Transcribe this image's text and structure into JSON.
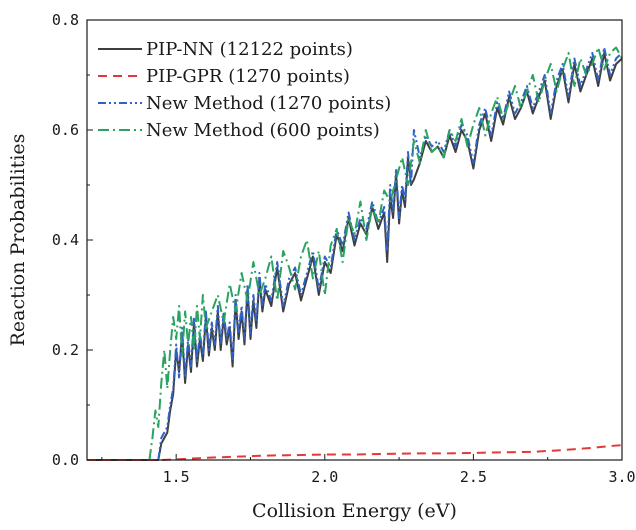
{
  "chart_data": {
    "type": "line",
    "title": "",
    "xlabel": "Collision Energy (eV)",
    "ylabel": "Reaction Probabilities",
    "xlim": [
      1.2,
      3.0
    ],
    "ylim": [
      0.0,
      0.8
    ],
    "xticks": [
      1.5,
      2.0,
      2.5,
      3.0
    ],
    "xtick_labels": [
      "1.5",
      "2.0",
      "2.5",
      "3.0"
    ],
    "yticks": [
      0.0,
      0.2,
      0.4,
      0.6,
      0.8
    ],
    "ytick_labels": [
      "0.0",
      "0.2",
      "0.4",
      "0.6",
      "0.8"
    ],
    "grid": false,
    "legend_position": "top-left",
    "series": [
      {
        "name": "PIP-NN (12122 points)",
        "color": "#3f3f3f",
        "dash": "solid",
        "x": [
          1.2,
          1.44,
          1.45,
          1.47,
          1.48,
          1.49,
          1.5,
          1.51,
          1.52,
          1.53,
          1.54,
          1.55,
          1.56,
          1.57,
          1.58,
          1.59,
          1.6,
          1.61,
          1.62,
          1.63,
          1.64,
          1.65,
          1.66,
          1.67,
          1.68,
          1.69,
          1.7,
          1.71,
          1.72,
          1.73,
          1.74,
          1.75,
          1.76,
          1.77,
          1.78,
          1.79,
          1.8,
          1.82,
          1.84,
          1.86,
          1.88,
          1.9,
          1.92,
          1.94,
          1.96,
          1.98,
          2.0,
          2.02,
          2.04,
          2.06,
          2.08,
          2.1,
          2.12,
          2.14,
          2.16,
          2.18,
          2.2,
          2.21,
          2.22,
          2.23,
          2.24,
          2.25,
          2.26,
          2.27,
          2.28,
          2.29,
          2.3,
          2.32,
          2.34,
          2.36,
          2.38,
          2.4,
          2.42,
          2.44,
          2.46,
          2.48,
          2.5,
          2.52,
          2.54,
          2.56,
          2.58,
          2.6,
          2.62,
          2.64,
          2.66,
          2.68,
          2.7,
          2.72,
          2.74,
          2.76,
          2.78,
          2.8,
          2.82,
          2.84,
          2.86,
          2.88,
          2.9,
          2.92,
          2.94,
          2.96,
          2.98,
          3.0
        ],
        "y": [
          0.0,
          0.0,
          0.03,
          0.05,
          0.09,
          0.12,
          0.2,
          0.16,
          0.23,
          0.14,
          0.21,
          0.16,
          0.25,
          0.17,
          0.22,
          0.18,
          0.26,
          0.19,
          0.24,
          0.2,
          0.27,
          0.2,
          0.26,
          0.21,
          0.24,
          0.17,
          0.29,
          0.22,
          0.27,
          0.21,
          0.31,
          0.22,
          0.29,
          0.24,
          0.33,
          0.27,
          0.31,
          0.28,
          0.35,
          0.27,
          0.32,
          0.34,
          0.29,
          0.33,
          0.37,
          0.3,
          0.36,
          0.34,
          0.41,
          0.38,
          0.44,
          0.39,
          0.43,
          0.41,
          0.46,
          0.42,
          0.45,
          0.36,
          0.48,
          0.44,
          0.52,
          0.43,
          0.49,
          0.46,
          0.55,
          0.5,
          0.51,
          0.54,
          0.58,
          0.56,
          0.57,
          0.55,
          0.59,
          0.56,
          0.6,
          0.58,
          0.53,
          0.6,
          0.63,
          0.58,
          0.64,
          0.61,
          0.66,
          0.62,
          0.64,
          0.67,
          0.63,
          0.66,
          0.69,
          0.62,
          0.68,
          0.71,
          0.65,
          0.72,
          0.67,
          0.7,
          0.73,
          0.68,
          0.74,
          0.69,
          0.72,
          0.73
        ]
      },
      {
        "name": "PIP-GPR (1270 points)",
        "color": "#e03a3a",
        "dash": "dashed",
        "x": [
          1.2,
          1.45,
          1.5,
          1.6,
          1.7,
          1.8,
          1.9,
          2.0,
          2.1,
          2.2,
          2.3,
          2.4,
          2.5,
          2.6,
          2.7,
          2.8,
          2.9,
          2.95,
          3.0
        ],
        "y": [
          0.0,
          0.0,
          0.001,
          0.004,
          0.006,
          0.008,
          0.009,
          0.01,
          0.01,
          0.011,
          0.012,
          0.012,
          0.013,
          0.014,
          0.015,
          0.018,
          0.022,
          0.025,
          0.027
        ]
      },
      {
        "name": "New Method (1270 points)",
        "color": "#2e62c9",
        "dash": "dash-dot-dot",
        "x": [
          1.44,
          1.45,
          1.47,
          1.48,
          1.49,
          1.5,
          1.51,
          1.52,
          1.53,
          1.54,
          1.55,
          1.56,
          1.57,
          1.58,
          1.59,
          1.6,
          1.61,
          1.62,
          1.63,
          1.64,
          1.65,
          1.66,
          1.67,
          1.68,
          1.69,
          1.7,
          1.71,
          1.72,
          1.73,
          1.74,
          1.75,
          1.76,
          1.77,
          1.78,
          1.79,
          1.8,
          1.82,
          1.84,
          1.86,
          1.88,
          1.9,
          1.92,
          1.94,
          1.96,
          1.98,
          2.0,
          2.02,
          2.04,
          2.06,
          2.08,
          2.1,
          2.12,
          2.14,
          2.16,
          2.18,
          2.2,
          2.21,
          2.22,
          2.23,
          2.24,
          2.25,
          2.26,
          2.27,
          2.28,
          2.29,
          2.3,
          2.32,
          2.34,
          2.36,
          2.38,
          2.4,
          2.42,
          2.44,
          2.46,
          2.48,
          2.5,
          2.52,
          2.54,
          2.56,
          2.58,
          2.6,
          2.62,
          2.64,
          2.66,
          2.68,
          2.7,
          2.72,
          2.74,
          2.76,
          2.78,
          2.8,
          2.82,
          2.84,
          2.86,
          2.88,
          2.9,
          2.92,
          2.94,
          2.96,
          2.98,
          3.0
        ],
        "y": [
          0.0,
          0.04,
          0.06,
          0.1,
          0.13,
          0.21,
          0.15,
          0.24,
          0.15,
          0.22,
          0.17,
          0.26,
          0.18,
          0.23,
          0.19,
          0.27,
          0.2,
          0.25,
          0.21,
          0.28,
          0.21,
          0.27,
          0.22,
          0.25,
          0.18,
          0.3,
          0.23,
          0.28,
          0.22,
          0.32,
          0.23,
          0.3,
          0.25,
          0.34,
          0.28,
          0.32,
          0.29,
          0.36,
          0.28,
          0.33,
          0.35,
          0.3,
          0.34,
          0.38,
          0.31,
          0.37,
          0.35,
          0.42,
          0.39,
          0.45,
          0.4,
          0.44,
          0.42,
          0.47,
          0.43,
          0.46,
          0.38,
          0.5,
          0.45,
          0.53,
          0.44,
          0.5,
          0.47,
          0.56,
          0.5,
          0.6,
          0.55,
          0.59,
          0.57,
          0.58,
          0.56,
          0.6,
          0.57,
          0.61,
          0.59,
          0.54,
          0.61,
          0.64,
          0.59,
          0.65,
          0.62,
          0.67,
          0.63,
          0.65,
          0.68,
          0.64,
          0.67,
          0.7,
          0.63,
          0.69,
          0.72,
          0.66,
          0.73,
          0.68,
          0.71,
          0.74,
          0.69,
          0.75,
          0.7,
          0.73,
          0.74
        ]
      },
      {
        "name": "New Method (600 points)",
        "color": "#2aa262",
        "dash": "dash-dot",
        "x": [
          1.41,
          1.42,
          1.43,
          1.44,
          1.45,
          1.46,
          1.47,
          1.48,
          1.49,
          1.5,
          1.51,
          1.52,
          1.53,
          1.54,
          1.55,
          1.56,
          1.57,
          1.58,
          1.59,
          1.6,
          1.62,
          1.64,
          1.66,
          1.68,
          1.7,
          1.72,
          1.74,
          1.76,
          1.78,
          1.8,
          1.82,
          1.84,
          1.86,
          1.88,
          1.9,
          1.92,
          1.94,
          1.96,
          1.98,
          2.0,
          2.02,
          2.04,
          2.06,
          2.08,
          2.1,
          2.12,
          2.14,
          2.16,
          2.18,
          2.2,
          2.22,
          2.24,
          2.26,
          2.28,
          2.3,
          2.32,
          2.34,
          2.36,
          2.38,
          2.4,
          2.42,
          2.44,
          2.46,
          2.48,
          2.5,
          2.52,
          2.54,
          2.56,
          2.58,
          2.6,
          2.62,
          2.64,
          2.66,
          2.68,
          2.7,
          2.72,
          2.74,
          2.76,
          2.78,
          2.8,
          2.82,
          2.84,
          2.86,
          2.88,
          2.9,
          2.92,
          2.94,
          2.96,
          2.98,
          3.0
        ],
        "y": [
          0.0,
          0.04,
          0.09,
          0.06,
          0.14,
          0.2,
          0.13,
          0.2,
          0.26,
          0.22,
          0.28,
          0.19,
          0.27,
          0.21,
          0.26,
          0.2,
          0.28,
          0.22,
          0.3,
          0.24,
          0.27,
          0.3,
          0.25,
          0.32,
          0.27,
          0.34,
          0.29,
          0.36,
          0.3,
          0.33,
          0.37,
          0.29,
          0.38,
          0.35,
          0.31,
          0.37,
          0.4,
          0.33,
          0.38,
          0.3,
          0.39,
          0.42,
          0.36,
          0.44,
          0.41,
          0.47,
          0.4,
          0.46,
          0.43,
          0.49,
          0.47,
          0.51,
          0.55,
          0.5,
          0.58,
          0.54,
          0.6,
          0.56,
          0.57,
          0.55,
          0.6,
          0.58,
          0.62,
          0.57,
          0.61,
          0.64,
          0.59,
          0.63,
          0.66,
          0.62,
          0.65,
          0.68,
          0.64,
          0.67,
          0.7,
          0.65,
          0.69,
          0.72,
          0.67,
          0.71,
          0.74,
          0.68,
          0.73,
          0.7,
          0.72,
          0.75,
          0.71,
          0.74,
          0.75,
          0.73
        ]
      }
    ]
  }
}
